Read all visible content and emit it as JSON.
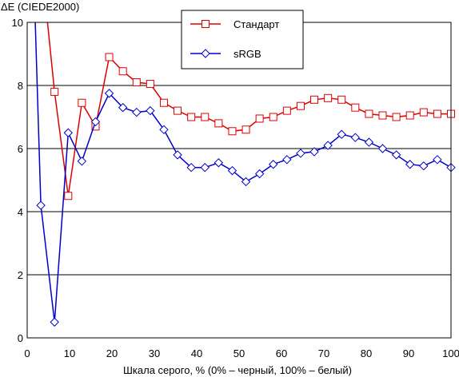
{
  "chart_data": {
    "type": "line",
    "title": "",
    "ylabel": "ΔE (CIEDE2000)",
    "xlabel": "Шкала серого, % (0% – черный, 100% – белый)",
    "xlim": [
      0,
      100
    ],
    "ylim": [
      0,
      10
    ],
    "xticks": [
      "0",
      "10",
      "20",
      "30",
      "40",
      "50",
      "60",
      "70",
      "80",
      "90",
      "100"
    ],
    "yticks": [
      "0",
      "2",
      "4",
      "6",
      "8",
      "10"
    ],
    "grid": "horizontal",
    "legend_position": "top-center",
    "series": [
      {
        "name": "Стандарт",
        "color": "#dd0000",
        "marker": "square",
        "x": [
          6.45,
          9.68,
          12.9,
          16.13,
          19.35,
          22.58,
          25.81,
          29.03,
          32.26,
          35.48,
          38.71,
          41.94,
          45.16,
          48.39,
          51.61,
          54.84,
          58.06,
          61.29,
          64.52,
          67.74,
          70.97,
          74.19,
          77.42,
          80.65,
          83.87,
          87.1,
          90.32,
          93.55,
          96.77,
          100
        ],
        "y": [
          7.8,
          4.5,
          7.45,
          6.7,
          8.9,
          8.45,
          8.1,
          8.05,
          7.45,
          7.2,
          7.0,
          7.0,
          6.8,
          6.55,
          6.6,
          6.95,
          7.0,
          7.2,
          7.35,
          7.55,
          7.6,
          7.55,
          7.3,
          7.1,
          7.05,
          7.0,
          7.05,
          7.15,
          7.1,
          7.1
        ],
        "lead_in": {
          "x": 4.8,
          "y": 10
        }
      },
      {
        "name": "sRGB",
        "color": "#0000cc",
        "marker": "diamond",
        "x": [
          3.23,
          6.45,
          9.68,
          12.9,
          16.13,
          19.35,
          22.58,
          25.81,
          29.03,
          32.26,
          35.48,
          38.71,
          41.94,
          45.16,
          48.39,
          51.61,
          54.84,
          58.06,
          61.29,
          64.52,
          67.74,
          70.97,
          74.19,
          77.42,
          80.65,
          83.87,
          87.1,
          90.32,
          93.55,
          96.77,
          100
        ],
        "y": [
          4.2,
          0.5,
          6.5,
          5.6,
          6.85,
          7.75,
          7.3,
          7.15,
          7.2,
          6.6,
          5.8,
          5.4,
          5.4,
          5.55,
          5.3,
          4.95,
          5.2,
          5.5,
          5.65,
          5.85,
          5.9,
          6.1,
          6.45,
          6.35,
          6.2,
          6.0,
          5.8,
          5.5,
          5.45,
          5.65,
          5.4
        ],
        "lead_in": {
          "x": 1.9,
          "y": 10
        }
      }
    ]
  }
}
